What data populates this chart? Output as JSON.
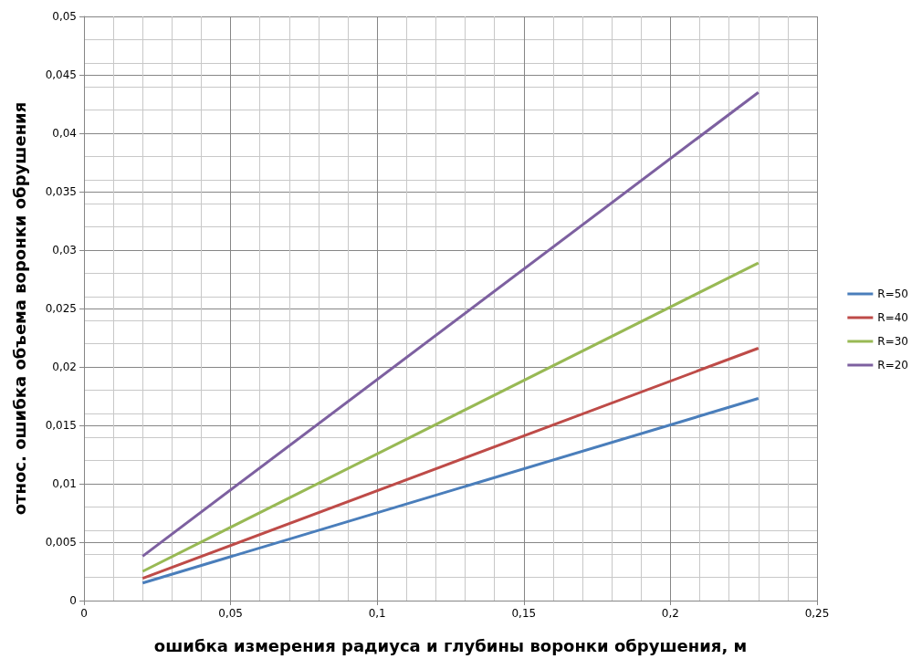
{
  "chart_data": {
    "type": "line",
    "xlabel": "ошибка измерения радиуса и глубины воронки обрушения, м",
    "ylabel": "относ. ошибка объема воронки обрушения",
    "x": [
      0.02,
      0.23
    ],
    "series": [
      {
        "name": "R=50",
        "color": "#4a7ebb",
        "values": [
          0.0015,
          0.0173
        ]
      },
      {
        "name": "R=40",
        "color": "#be4b48",
        "values": [
          0.0019,
          0.0216
        ]
      },
      {
        "name": "R=30",
        "color": "#98b954",
        "values": [
          0.0025,
          0.0289
        ]
      },
      {
        "name": "R=20",
        "color": "#7d60a0",
        "values": [
          0.0038,
          0.0435
        ]
      }
    ],
    "xlim": [
      0,
      0.25
    ],
    "xticks": [
      0,
      {
        "value": 0.05,
        "label": "0,05"
      },
      {
        "value": 0.1,
        "label": "0,1"
      },
      {
        "value": 0.15,
        "label": "0,15"
      },
      {
        "value": 0.2,
        "label": "0,2"
      },
      {
        "value": 0.25,
        "label": "0,25"
      }
    ],
    "ylim": [
      0,
      0.05
    ],
    "yticks": [
      0,
      {
        "value": 0.005,
        "label": "0,005"
      },
      {
        "value": 0.01,
        "label": "0,01"
      },
      {
        "value": 0.015,
        "label": "0,015"
      },
      {
        "value": 0.02,
        "label": "0,02"
      },
      {
        "value": 0.025,
        "label": "0,025"
      },
      {
        "value": 0.03,
        "label": "0,03"
      },
      {
        "value": 0.035,
        "label": "0,035"
      },
      {
        "value": 0.04,
        "label": "0,04"
      },
      {
        "value": 0.045,
        "label": "0,045"
      },
      {
        "value": 0.05,
        "label": "0,05"
      }
    ],
    "grid": true,
    "legend": "right",
    "marker": "none",
    "line_style": "solid"
  }
}
